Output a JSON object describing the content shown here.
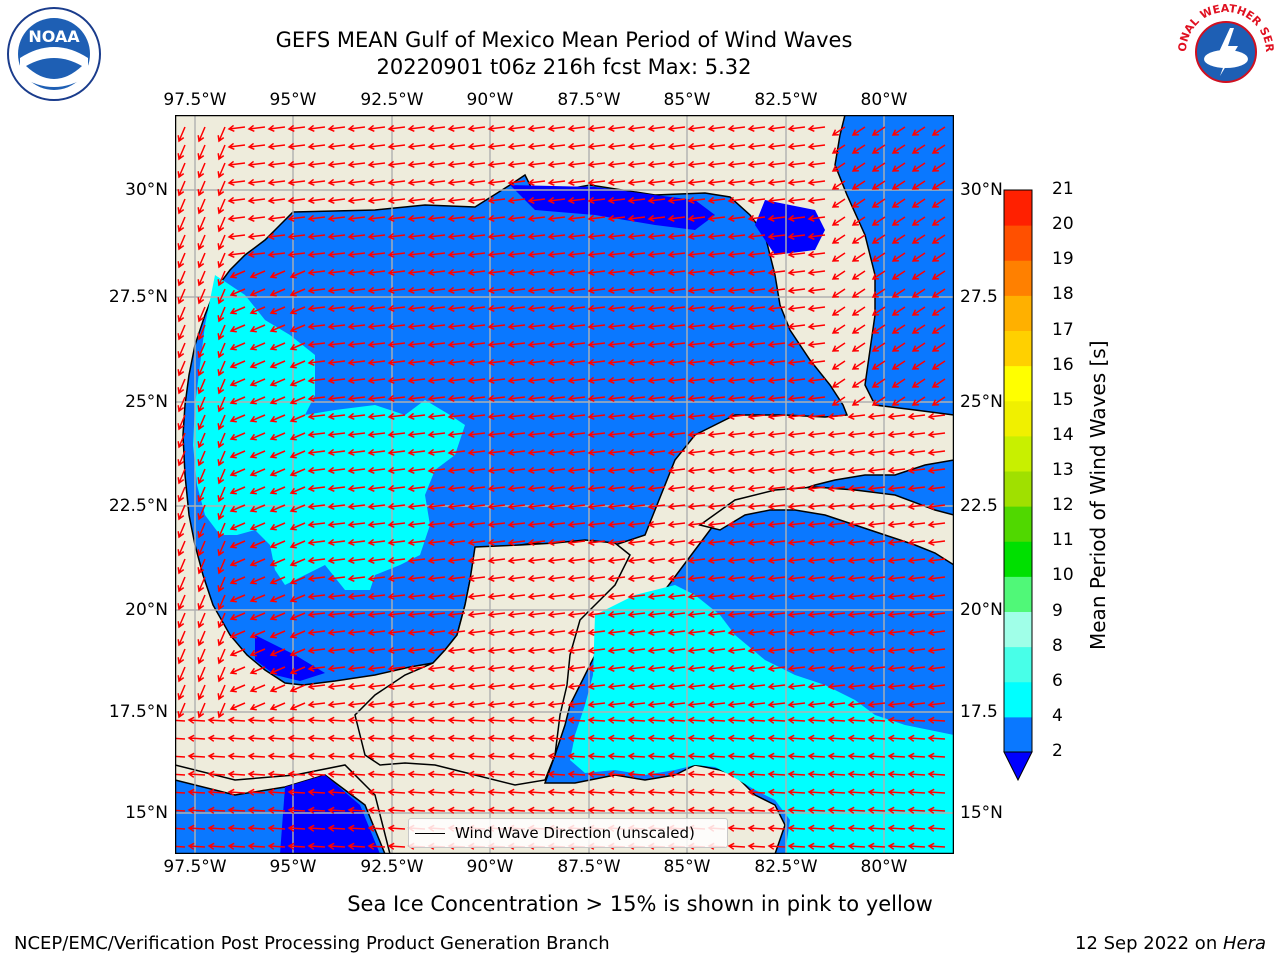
{
  "title": {
    "line1": "GEFS MEAN Gulf of Mexico Mean Period of Wind Waves",
    "line2": "20220901 t06z 216h fcst   Max: 5.32"
  },
  "axes": {
    "lon_labels": [
      "97.5°W",
      "95°W",
      "92.5°W",
      "90°W",
      "87.5°W",
      "85°W",
      "82.5°W",
      "80°W"
    ],
    "lat_labels_left": [
      "30°N",
      "27.5°N",
      "25°N",
      "22.5°N",
      "20°N",
      "17.5°N",
      "15°N"
    ],
    "lat_labels_right": [
      "30°N",
      "27.5",
      "25°N",
      "22.5",
      "20°N",
      "17.5",
      "15°N"
    ]
  },
  "legend": {
    "label": "Wind Wave Direction (unscaled)"
  },
  "colorbar": {
    "title": "Mean Period of Wind Waves [s]",
    "ticks": [
      "2",
      "4",
      "6",
      "8",
      "9",
      "10",
      "11",
      "12",
      "13",
      "14",
      "15",
      "16",
      "17",
      "18",
      "19",
      "20",
      "21"
    ],
    "colors": [
      "#0a78ff",
      "#00ffff",
      "#48ffe8",
      "#a0ffe8",
      "#50f878",
      "#00e000",
      "#50d800",
      "#a0e000",
      "#c8f000",
      "#f0f000",
      "#ffff00",
      "#ffd000",
      "#ffb000",
      "#ff8000",
      "#ff5000",
      "#ff2000"
    ],
    "under_color": "#0000ff"
  },
  "map_colors": {
    "land": "#eeecdc",
    "water_2_4": "#0a78ff",
    "water_under_2": "#0000ff",
    "water_4_6": "#00ffff",
    "arrows": "#ff0000",
    "grid": "#b0b0b0"
  },
  "note": "Sea Ice Concentration > 15% is shown in pink to yellow",
  "footer": {
    "left": "NCEP/EMC/Verification Post Processing Product Generation Branch",
    "right_date": "12 Sep 2022 on ",
    "right_host": "Hera"
  },
  "logos": {
    "left": "NOAA",
    "right": "NATIONAL WEATHER SERVICE"
  }
}
